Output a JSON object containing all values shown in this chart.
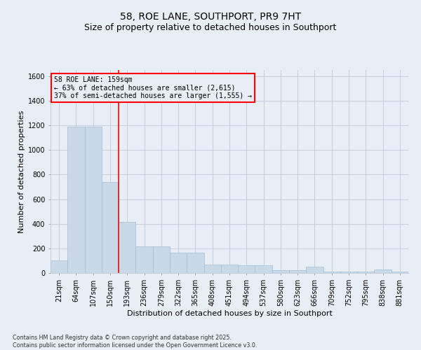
{
  "title": "58, ROE LANE, SOUTHPORT, PR9 7HT",
  "subtitle": "Size of property relative to detached houses in Southport",
  "xlabel": "Distribution of detached houses by size in Southport",
  "ylabel": "Number of detached properties",
  "categories": [
    "21sqm",
    "64sqm",
    "107sqm",
    "150sqm",
    "193sqm",
    "236sqm",
    "279sqm",
    "322sqm",
    "365sqm",
    "408sqm",
    "451sqm",
    "494sqm",
    "537sqm",
    "580sqm",
    "623sqm",
    "666sqm",
    "709sqm",
    "752sqm",
    "795sqm",
    "838sqm",
    "881sqm"
  ],
  "values": [
    100,
    1190,
    1190,
    740,
    415,
    215,
    215,
    165,
    165,
    70,
    70,
    60,
    60,
    20,
    20,
    50,
    10,
    10,
    10,
    30,
    10
  ],
  "bar_color": "#c9d9e8",
  "bar_edgecolor": "#a0bcd4",
  "grid_color": "#c0c8d8",
  "background_color": "#e8eef5",
  "vline_color": "red",
  "vline_position": 3.5,
  "annotation_text": "58 ROE LANE: 159sqm\n← 63% of detached houses are smaller (2,615)\n37% of semi-detached houses are larger (1,555) →",
  "annotation_box_color": "red",
  "ylim": [
    0,
    1650
  ],
  "yticks": [
    0,
    200,
    400,
    600,
    800,
    1000,
    1200,
    1400,
    1600
  ],
  "footer": "Contains HM Land Registry data © Crown copyright and database right 2025.\nContains public sector information licensed under the Open Government Licence v3.0.",
  "title_fontsize": 10,
  "subtitle_fontsize": 9,
  "tick_fontsize": 7,
  "label_fontsize": 8,
  "ylabel_fontsize": 8
}
